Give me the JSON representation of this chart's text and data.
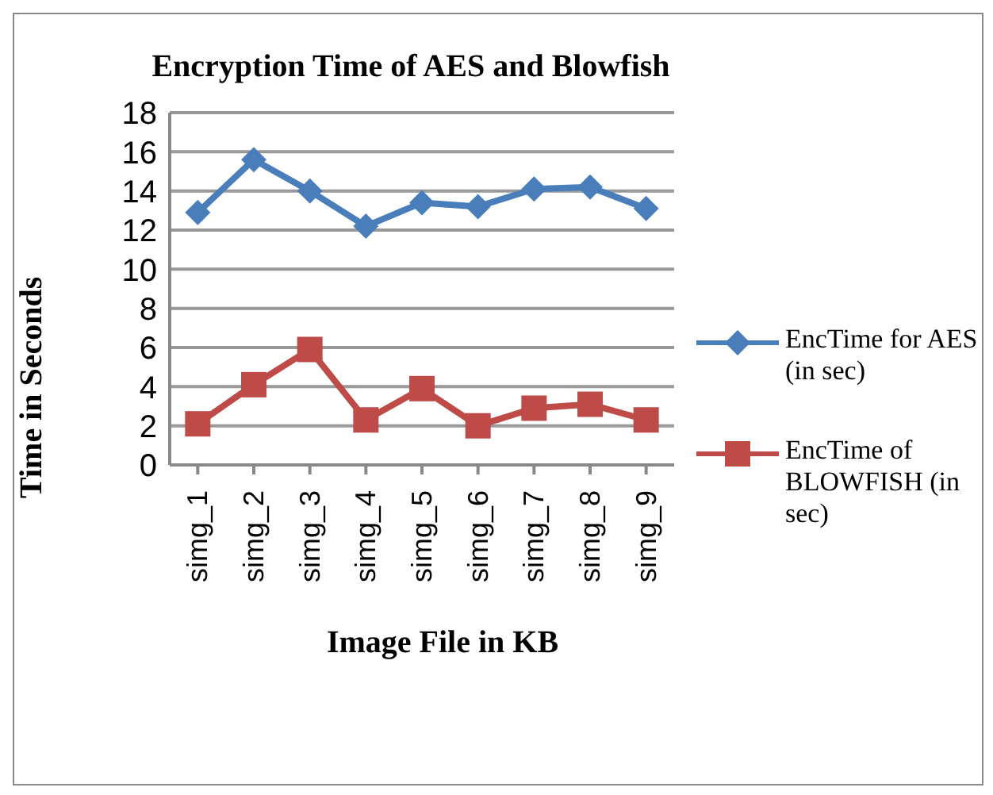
{
  "chart_data": {
    "type": "line",
    "title": "Encryption Time of AES and Blowfish",
    "xlabel": "Image File in KB",
    "ylabel": "Time in Seconds",
    "categories": [
      "simg_1",
      "simg_2",
      "simg_3",
      "simg_4",
      "simg_5",
      "simg_6",
      "simg_7",
      "simg_8",
      "simg_9"
    ],
    "series": [
      {
        "name": "EncTime for AES (in sec)",
        "color": "#4a7ebb",
        "marker": "diamond",
        "values": [
          12.9,
          15.6,
          14.0,
          12.2,
          13.4,
          13.2,
          14.1,
          14.2,
          13.1
        ]
      },
      {
        "name": "EncTime of BLOWFISH (in sec)",
        "color": "#be4b48",
        "marker": "square",
        "values": [
          2.1,
          4.1,
          5.9,
          2.3,
          3.9,
          2.0,
          2.9,
          3.1,
          2.3
        ]
      }
    ],
    "ylim": [
      0,
      18
    ],
    "yticks": [
      0,
      2,
      4,
      6,
      8,
      10,
      12,
      14,
      16,
      18
    ],
    "grid": "y",
    "legend": "right"
  }
}
